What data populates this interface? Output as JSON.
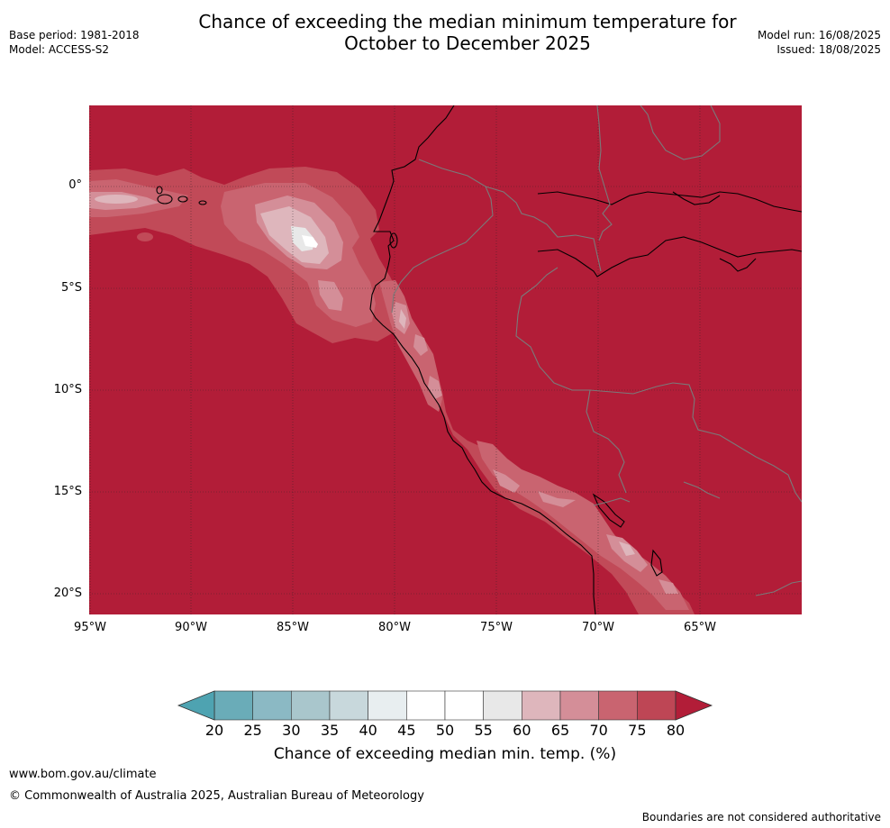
{
  "title": {
    "line1": "Chance of exceeding the median minimum temperature for",
    "line2": "October to December 2025"
  },
  "meta": {
    "base_period": "Base period: 1981-2018",
    "model": "Model: ACCESS-S2",
    "model_run": "Model run: 16/08/2025",
    "issued": "Issued: 18/08/2025"
  },
  "map": {
    "background_color": "#b21d38",
    "lat_labels": [
      "0°",
      "5°S",
      "10°S",
      "15°S",
      "20°S"
    ],
    "lon_labels": [
      "95°W",
      "90°W",
      "85°W",
      "80°W",
      "75°W",
      "70°W",
      "65°W"
    ],
    "gridlines": true
  },
  "colorbar": {
    "title": "Chance of exceeding median min. temp. (%)",
    "ticks": [
      "20",
      "25",
      "30",
      "35",
      "40",
      "45",
      "50",
      "55",
      "60",
      "65",
      "70",
      "75",
      "80"
    ],
    "colors": [
      "#6aacb8",
      "#8bb9c4",
      "#a9c6cc",
      "#c8d8dc",
      "#e8eef0",
      "#ffffff",
      "#ffffff",
      "#e8e8e8",
      "#deb6bc",
      "#d48e98",
      "#c96470",
      "#be4655"
    ],
    "under_color": "#4ea3b1",
    "over_color": "#b21d38"
  },
  "footer": {
    "url": "www.bom.gov.au/climate",
    "copyright": "© Commonwealth of Australia 2025, Australian Bureau of Meteorology",
    "note": "Boundaries are not considered authoritative"
  }
}
